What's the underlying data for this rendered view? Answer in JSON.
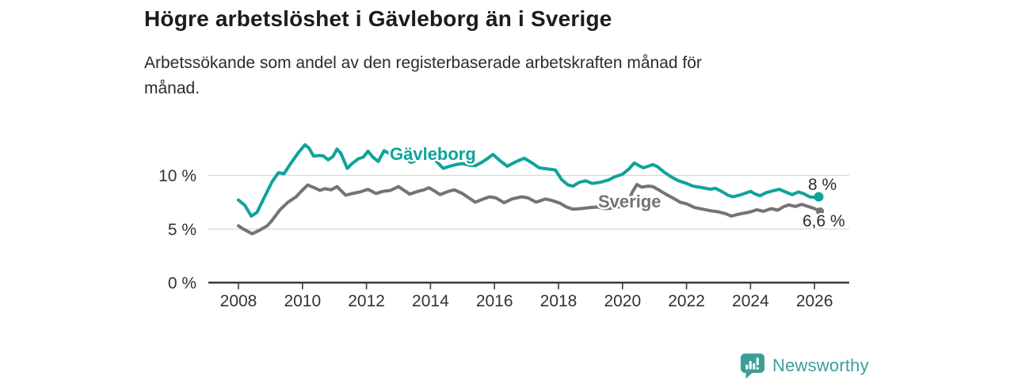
{
  "header": {
    "title": "Högre arbetslöshet i Gävleborg än i Sverige",
    "subtitle_lines": [
      "Arbetssökande som andel av den registerbaserade arbetskraften månad för",
      "månad."
    ]
  },
  "footer": {
    "brand": "Newsworthy"
  },
  "colors": {
    "gavleborg_teal": "#0FA39A",
    "sverige_gray": "#737378",
    "grid": "#d8d8d8",
    "axis": "#383838",
    "logo_teal": "#3D9E99"
  },
  "chart_data": {
    "type": "line",
    "title": "Högre arbetslöshet i Gävleborg än i Sverige",
    "subtitle": "Arbetssökande som andel av den registerbaserade arbetskraften månad för månad.",
    "xlabel": "",
    "ylabel": "",
    "grid": "horizontal",
    "legend_position": "inline-labels",
    "x_axis": {
      "range": [
        2007.1,
        2027.1
      ],
      "ticks": [
        {
          "value": 2008,
          "label": "2008"
        },
        {
          "value": 2010,
          "label": "2010"
        },
        {
          "value": 2012,
          "label": "2012"
        },
        {
          "value": 2014,
          "label": "2014"
        },
        {
          "value": 2016,
          "label": "2016"
        },
        {
          "value": 2018,
          "label": "2018"
        },
        {
          "value": 2020,
          "label": "2020"
        },
        {
          "value": 2022,
          "label": "2022"
        },
        {
          "value": 2024,
          "label": "2024"
        },
        {
          "value": 2026,
          "label": "2026"
        }
      ]
    },
    "y_axis": {
      "range": [
        0,
        14.5
      ],
      "unit": "%",
      "ticks": [
        {
          "value": 0,
          "label": "0 %"
        },
        {
          "value": 5,
          "label": "5 %"
        },
        {
          "value": 10,
          "label": "10 %"
        }
      ]
    },
    "series": [
      {
        "name": "Gävleborg",
        "color": "#0FA39A",
        "end_label": "8 %",
        "end_value": 8.0,
        "points": [
          [
            2008.0,
            7.7
          ],
          [
            2008.2,
            7.2
          ],
          [
            2008.4,
            6.2
          ],
          [
            2008.58,
            6.55
          ],
          [
            2008.8,
            7.9
          ],
          [
            2009.05,
            9.4
          ],
          [
            2009.25,
            10.25
          ],
          [
            2009.42,
            10.15
          ],
          [
            2009.63,
            11.1
          ],
          [
            2009.87,
            12.1
          ],
          [
            2010.08,
            12.85
          ],
          [
            2010.2,
            12.55
          ],
          [
            2010.35,
            11.8
          ],
          [
            2010.55,
            11.85
          ],
          [
            2010.66,
            11.8
          ],
          [
            2010.8,
            11.45
          ],
          [
            2010.95,
            11.75
          ],
          [
            2011.08,
            12.45
          ],
          [
            2011.2,
            12.05
          ],
          [
            2011.4,
            10.65
          ],
          [
            2011.55,
            11.1
          ],
          [
            2011.75,
            11.55
          ],
          [
            2011.9,
            11.7
          ],
          [
            2012.05,
            12.25
          ],
          [
            2012.2,
            11.7
          ],
          [
            2012.37,
            11.3
          ],
          [
            2012.55,
            12.3
          ],
          [
            2012.7,
            12.05
          ],
          [
            2012.9,
            11.85
          ],
          [
            2013.1,
            11.7
          ],
          [
            2013.4,
            11.2
          ],
          [
            2013.65,
            11.5
          ],
          [
            2013.95,
            11.9
          ],
          [
            2014.15,
            11.4
          ],
          [
            2014.4,
            10.65
          ],
          [
            2014.6,
            10.85
          ],
          [
            2014.8,
            11.0
          ],
          [
            2015.0,
            11.1
          ],
          [
            2015.2,
            10.95
          ],
          [
            2015.4,
            10.9
          ],
          [
            2015.6,
            11.2
          ],
          [
            2015.8,
            11.6
          ],
          [
            2015.95,
            11.95
          ],
          [
            2016.2,
            11.3
          ],
          [
            2016.4,
            10.85
          ],
          [
            2016.65,
            11.25
          ],
          [
            2016.93,
            11.6
          ],
          [
            2017.2,
            11.1
          ],
          [
            2017.4,
            10.7
          ],
          [
            2017.65,
            10.6
          ],
          [
            2017.9,
            10.5
          ],
          [
            2018.1,
            9.6
          ],
          [
            2018.3,
            9.1
          ],
          [
            2018.45,
            9.0
          ],
          [
            2018.65,
            9.35
          ],
          [
            2018.85,
            9.5
          ],
          [
            2019.05,
            9.25
          ],
          [
            2019.3,
            9.35
          ],
          [
            2019.55,
            9.55
          ],
          [
            2019.75,
            9.85
          ],
          [
            2020.0,
            10.1
          ],
          [
            2020.2,
            10.6
          ],
          [
            2020.37,
            11.15
          ],
          [
            2020.55,
            10.85
          ],
          [
            2020.65,
            10.7
          ],
          [
            2020.8,
            10.85
          ],
          [
            2020.95,
            11.0
          ],
          [
            2021.1,
            10.8
          ],
          [
            2021.3,
            10.3
          ],
          [
            2021.5,
            9.9
          ],
          [
            2021.75,
            9.5
          ],
          [
            2022.0,
            9.25
          ],
          [
            2022.2,
            9.0
          ],
          [
            2022.4,
            8.9
          ],
          [
            2022.6,
            8.8
          ],
          [
            2022.75,
            8.7
          ],
          [
            2022.9,
            8.8
          ],
          [
            2023.1,
            8.5
          ],
          [
            2023.3,
            8.15
          ],
          [
            2023.45,
            8.0
          ],
          [
            2023.65,
            8.15
          ],
          [
            2023.85,
            8.35
          ],
          [
            2024.0,
            8.5
          ],
          [
            2024.15,
            8.25
          ],
          [
            2024.3,
            8.1
          ],
          [
            2024.5,
            8.4
          ],
          [
            2024.7,
            8.55
          ],
          [
            2024.9,
            8.7
          ],
          [
            2025.1,
            8.45
          ],
          [
            2025.3,
            8.2
          ],
          [
            2025.5,
            8.45
          ],
          [
            2025.65,
            8.3
          ],
          [
            2025.85,
            8.0
          ],
          [
            2026.0,
            7.95
          ],
          [
            2026.13,
            8.0
          ]
        ]
      },
      {
        "name": "Sverige",
        "color": "#737378",
        "end_label": "6,6 %",
        "end_value": 6.6,
        "points": [
          [
            2008.0,
            5.3
          ],
          [
            2008.15,
            5.0
          ],
          [
            2008.43,
            4.55
          ],
          [
            2008.7,
            4.95
          ],
          [
            2008.9,
            5.3
          ],
          [
            2009.05,
            5.8
          ],
          [
            2009.3,
            6.8
          ],
          [
            2009.55,
            7.5
          ],
          [
            2009.8,
            8.0
          ],
          [
            2009.96,
            8.5
          ],
          [
            2010.16,
            9.1
          ],
          [
            2010.37,
            8.85
          ],
          [
            2010.55,
            8.6
          ],
          [
            2010.7,
            8.75
          ],
          [
            2010.9,
            8.65
          ],
          [
            2011.08,
            8.95
          ],
          [
            2011.35,
            8.15
          ],
          [
            2011.55,
            8.3
          ],
          [
            2011.8,
            8.45
          ],
          [
            2012.05,
            8.7
          ],
          [
            2012.3,
            8.3
          ],
          [
            2012.5,
            8.5
          ],
          [
            2012.75,
            8.6
          ],
          [
            2013.0,
            8.95
          ],
          [
            2013.2,
            8.55
          ],
          [
            2013.35,
            8.25
          ],
          [
            2013.6,
            8.5
          ],
          [
            2013.8,
            8.65
          ],
          [
            2013.95,
            8.85
          ],
          [
            2014.15,
            8.5
          ],
          [
            2014.3,
            8.2
          ],
          [
            2014.55,
            8.5
          ],
          [
            2014.75,
            8.65
          ],
          [
            2015.0,
            8.3
          ],
          [
            2015.2,
            7.9
          ],
          [
            2015.4,
            7.5
          ],
          [
            2015.65,
            7.8
          ],
          [
            2015.85,
            8.0
          ],
          [
            2016.05,
            7.9
          ],
          [
            2016.3,
            7.45
          ],
          [
            2016.55,
            7.8
          ],
          [
            2016.85,
            8.0
          ],
          [
            2017.05,
            7.9
          ],
          [
            2017.3,
            7.5
          ],
          [
            2017.6,
            7.8
          ],
          [
            2017.8,
            7.65
          ],
          [
            2018.05,
            7.4
          ],
          [
            2018.25,
            7.05
          ],
          [
            2018.45,
            6.85
          ],
          [
            2018.7,
            6.9
          ],
          [
            2019.0,
            7.0
          ],
          [
            2019.2,
            7.05
          ],
          [
            2019.45,
            6.9
          ],
          [
            2019.7,
            6.95
          ],
          [
            2019.95,
            7.1
          ],
          [
            2020.15,
            7.3
          ],
          [
            2020.3,
            8.4
          ],
          [
            2020.45,
            9.15
          ],
          [
            2020.6,
            8.9
          ],
          [
            2020.8,
            9.0
          ],
          [
            2020.95,
            8.95
          ],
          [
            2021.1,
            8.7
          ],
          [
            2021.35,
            8.25
          ],
          [
            2021.6,
            7.85
          ],
          [
            2021.8,
            7.5
          ],
          [
            2022.0,
            7.35
          ],
          [
            2022.25,
            7.0
          ],
          [
            2022.5,
            6.85
          ],
          [
            2022.75,
            6.7
          ],
          [
            2023.0,
            6.6
          ],
          [
            2023.25,
            6.4
          ],
          [
            2023.4,
            6.2
          ],
          [
            2023.65,
            6.4
          ],
          [
            2023.85,
            6.5
          ],
          [
            2024.0,
            6.6
          ],
          [
            2024.2,
            6.8
          ],
          [
            2024.4,
            6.65
          ],
          [
            2024.65,
            6.9
          ],
          [
            2024.85,
            6.75
          ],
          [
            2025.05,
            7.1
          ],
          [
            2025.2,
            7.25
          ],
          [
            2025.4,
            7.1
          ],
          [
            2025.6,
            7.3
          ],
          [
            2025.8,
            7.1
          ],
          [
            2026.0,
            6.9
          ],
          [
            2026.17,
            6.65
          ]
        ]
      }
    ]
  }
}
